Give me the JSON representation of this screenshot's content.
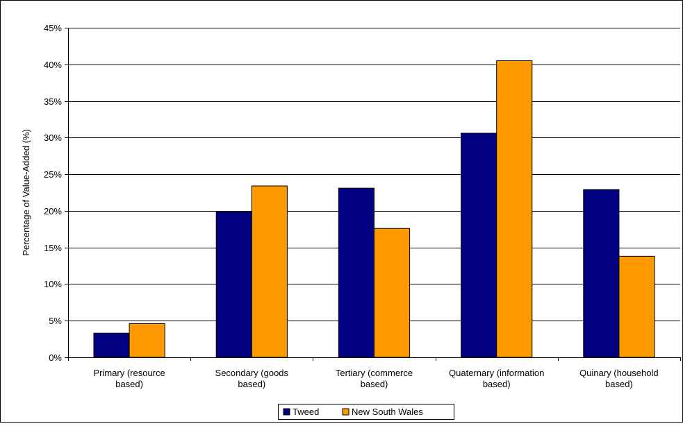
{
  "chart_data": {
    "type": "bar",
    "title": "",
    "xlabel": "",
    "ylabel": "Percentage of Value-Added (%)",
    "ylim": [
      0,
      45
    ],
    "y_tick_labels": [
      "0%",
      "5%",
      "10%",
      "15%",
      "20%",
      "25%",
      "30%",
      "35%",
      "40%",
      "45%"
    ],
    "categories": [
      [
        "Primary (resource",
        "based)"
      ],
      [
        "Secondary (goods",
        "based)"
      ],
      [
        "Tertiary (commerce",
        "based)"
      ],
      [
        "Quaternary (information",
        "based)"
      ],
      [
        "Quinary (household",
        "based)"
      ]
    ],
    "series": [
      {
        "name": "Tweed",
        "color": "#000080",
        "values": [
          3.3,
          19.9,
          23.1,
          30.6,
          22.9
        ]
      },
      {
        "name": "New South Wales",
        "color": "#FF9900",
        "values": [
          4.6,
          23.4,
          17.6,
          40.5,
          13.8
        ]
      }
    ],
    "grid": true,
    "legend_position": "bottom"
  }
}
